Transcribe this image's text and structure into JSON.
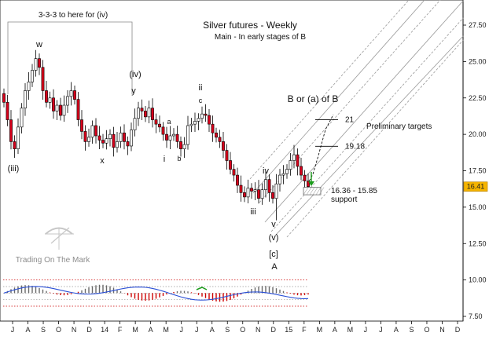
{
  "chart_data": {
    "type": "candlestick",
    "title": "Silver futures - Weekly",
    "subtitle": "Main - In early stages of B",
    "x_ticks": [
      "J",
      "A",
      "S",
      "O",
      "N",
      "D",
      "14",
      "F",
      "M",
      "A",
      "M",
      "J",
      "J",
      "A",
      "S",
      "O",
      "N",
      "D",
      "15",
      "F",
      "M",
      "A",
      "M",
      "J",
      "J",
      "A",
      "S",
      "O",
      "N",
      "D"
    ],
    "y_ticks": [
      "27.50",
      "25.00",
      "22.50",
      "20.00",
      "17.50",
      "15.00",
      "12.50",
      "10.00",
      "7.50"
    ],
    "y_tick_values": [
      27.5,
      25,
      22.5,
      20,
      17.5,
      15,
      12.5,
      10,
      7.5
    ],
    "ylim": [
      6.9,
      28.6
    ],
    "current_price": "16.41",
    "closes": [
      22.2,
      21.0,
      19.5,
      19.0,
      20.5,
      21.8,
      23.0,
      23.6,
      24.4,
      25.2,
      24.6,
      23.0,
      22.2,
      22.5,
      21.6,
      22.0,
      21.3,
      22.0,
      22.6,
      23.0,
      22.4,
      21.0,
      20.2,
      19.5,
      19.8,
      20.6,
      19.9,
      19.6,
      19.4,
      19.7,
      20.0,
      19.1,
      19.5,
      20.1,
      19.5,
      19.2,
      20.3,
      21.1,
      21.8,
      21.6,
      21.2,
      21.8,
      21.0,
      20.7,
      20.5,
      20.0,
      19.6,
      19.9,
      20.0,
      19.5,
      19.0,
      19.3,
      20.6,
      20.7,
      20.9,
      21.1,
      21.4,
      21.3,
      20.7,
      20.1,
      19.8,
      19.5,
      18.9,
      18.2,
      17.6,
      17.2,
      16.5,
      16.0,
      15.7,
      16.3,
      16.1,
      16.2,
      15.6,
      16.2,
      16.9,
      16.0,
      15.6,
      16.6,
      17.2,
      17.3,
      17.6,
      18.2,
      18.6,
      17.8,
      17.2,
      16.8,
      16.41
    ],
    "price_labels": [
      {
        "text": "21",
        "value": 21.0
      },
      {
        "text": "19.18",
        "value": 19.18
      }
    ],
    "support_zone": {
      "label": "16.36 - 15.85",
      "label2": "support",
      "high": 16.36,
      "low": 15.85
    },
    "oscillator": {
      "levels": [
        10.0,
        9.55,
        9.1,
        8.65,
        8.2
      ]
    }
  },
  "wave_labels": {
    "w": "w",
    "x": "x",
    "y": "y",
    "iii_paren": "(iii)",
    "iv_paren": "(iv)",
    "a": "a",
    "b": "b",
    "c": "c",
    "i": "i",
    "ii": "ii",
    "iii": "iii",
    "iv": "iv",
    "v": "v",
    "v_paren": "(v)",
    "c_bracket": "[c]",
    "A": "A"
  },
  "annotations": {
    "box_note": "3-3-3 to here for (iv)",
    "b_note": "B or (a) of B",
    "targets": "Preliminary targets"
  },
  "watermark": "Trading On The Mark",
  "colors": {
    "up": "#ffffff",
    "down": "#d9001b",
    "candle_edge": "#000000",
    "channel": "#999999",
    "grid": "#cccccc",
    "osc_red": "#cc0000",
    "osc_blue": "#2a4fd6",
    "osc_dots": "#b0001a",
    "current_bg": "#f5b400"
  }
}
